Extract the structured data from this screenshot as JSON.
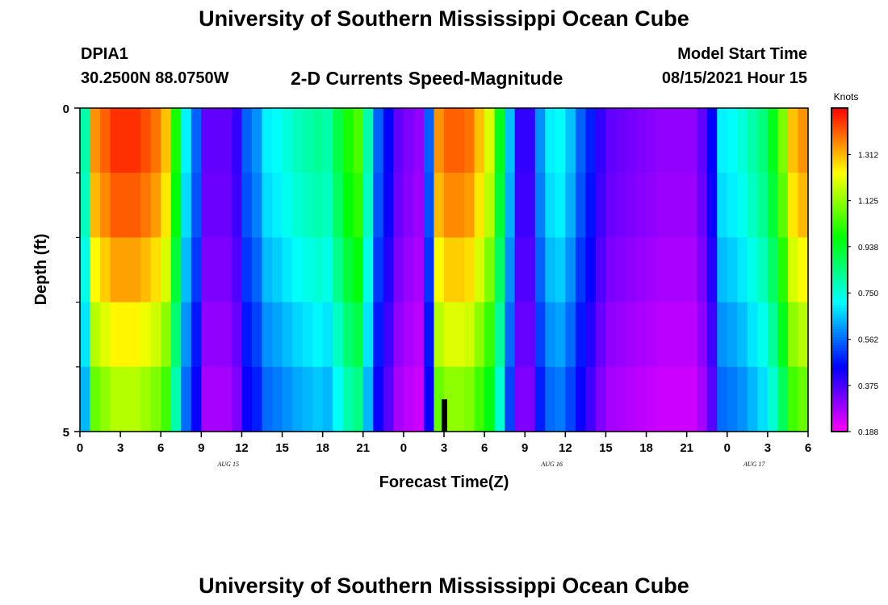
{
  "header": {
    "title": "University of Southern Mississippi Ocean Cube",
    "station_id": "DPIA1",
    "station_coords": "30.2500N  88.0750W",
    "plot_title": "2-D Currents Speed-Magnitude",
    "model_start_label": "Model Start Time",
    "model_start_value": "08/15/2021 Hour 15"
  },
  "footer": {
    "title": "University of Southern Mississippi Ocean Cube"
  },
  "chart_data": {
    "type": "heatmap",
    "title": "2-D Currents Speed-Magnitude",
    "xlabel": "Forecast Time(Z)",
    "ylabel": "Depth (ft)",
    "x_tick_labels": [
      "0",
      "3",
      "6",
      "9",
      "12",
      "15",
      "18",
      "21",
      "0",
      "3",
      "6",
      "9",
      "12",
      "15",
      "18",
      "21",
      "0",
      "3",
      "6"
    ],
    "x_range_hours": [
      0,
      54
    ],
    "date_labels": [
      {
        "label": "AUG 15",
        "hour": 11
      },
      {
        "label": "AUG 16",
        "hour": 35
      },
      {
        "label": "AUG 17",
        "hour": 50
      }
    ],
    "y_tick_labels": [
      "0",
      "5"
    ],
    "y_range": [
      0,
      5
    ],
    "y_minor_ticks": [
      1,
      2,
      3,
      4
    ],
    "depth_layers": 5,
    "colorbar": {
      "unit": "Knots",
      "min": 0.188,
      "max": 1.5,
      "ticks": [
        1.312,
        1.125,
        0.938,
        0.75,
        0.562,
        0.375,
        0.188
      ],
      "tick_labels": [
        "1.312",
        "1.125",
        "0.938",
        "0.750",
        "0.562",
        "0.375",
        "0.188"
      ]
    },
    "marker": {
      "hour": 27,
      "depth_from": 4.5,
      "depth_to": 5,
      "color": "#000000"
    },
    "surface_speed_knots": [
      0.8,
      1.35,
      1.4,
      1.45,
      1.45,
      1.45,
      1.42,
      1.38,
      1.3,
      1.0,
      0.7,
      0.55,
      0.35,
      0.35,
      0.35,
      0.4,
      0.55,
      0.6,
      0.7,
      0.72,
      0.75,
      0.78,
      0.8,
      0.82,
      0.8,
      0.9,
      1.0,
      1.05,
      0.8,
      0.55,
      0.45,
      0.35,
      0.32,
      0.3,
      0.55,
      1.35,
      1.4,
      1.4,
      1.38,
      1.3,
      1.2,
      0.95,
      0.65,
      0.4,
      0.4,
      0.6,
      0.7,
      0.72,
      0.65,
      0.55,
      0.48,
      0.4,
      0.35,
      0.34,
      0.33,
      0.32,
      0.31,
      0.3,
      0.3,
      0.3,
      0.3,
      0.35,
      0.45,
      0.7,
      0.72,
      0.75,
      0.8,
      0.85,
      0.95,
      1.1,
      1.3,
      1.35
    ],
    "depth_factor": [
      1.0,
      0.97,
      0.92,
      0.86,
      0.8
    ]
  }
}
